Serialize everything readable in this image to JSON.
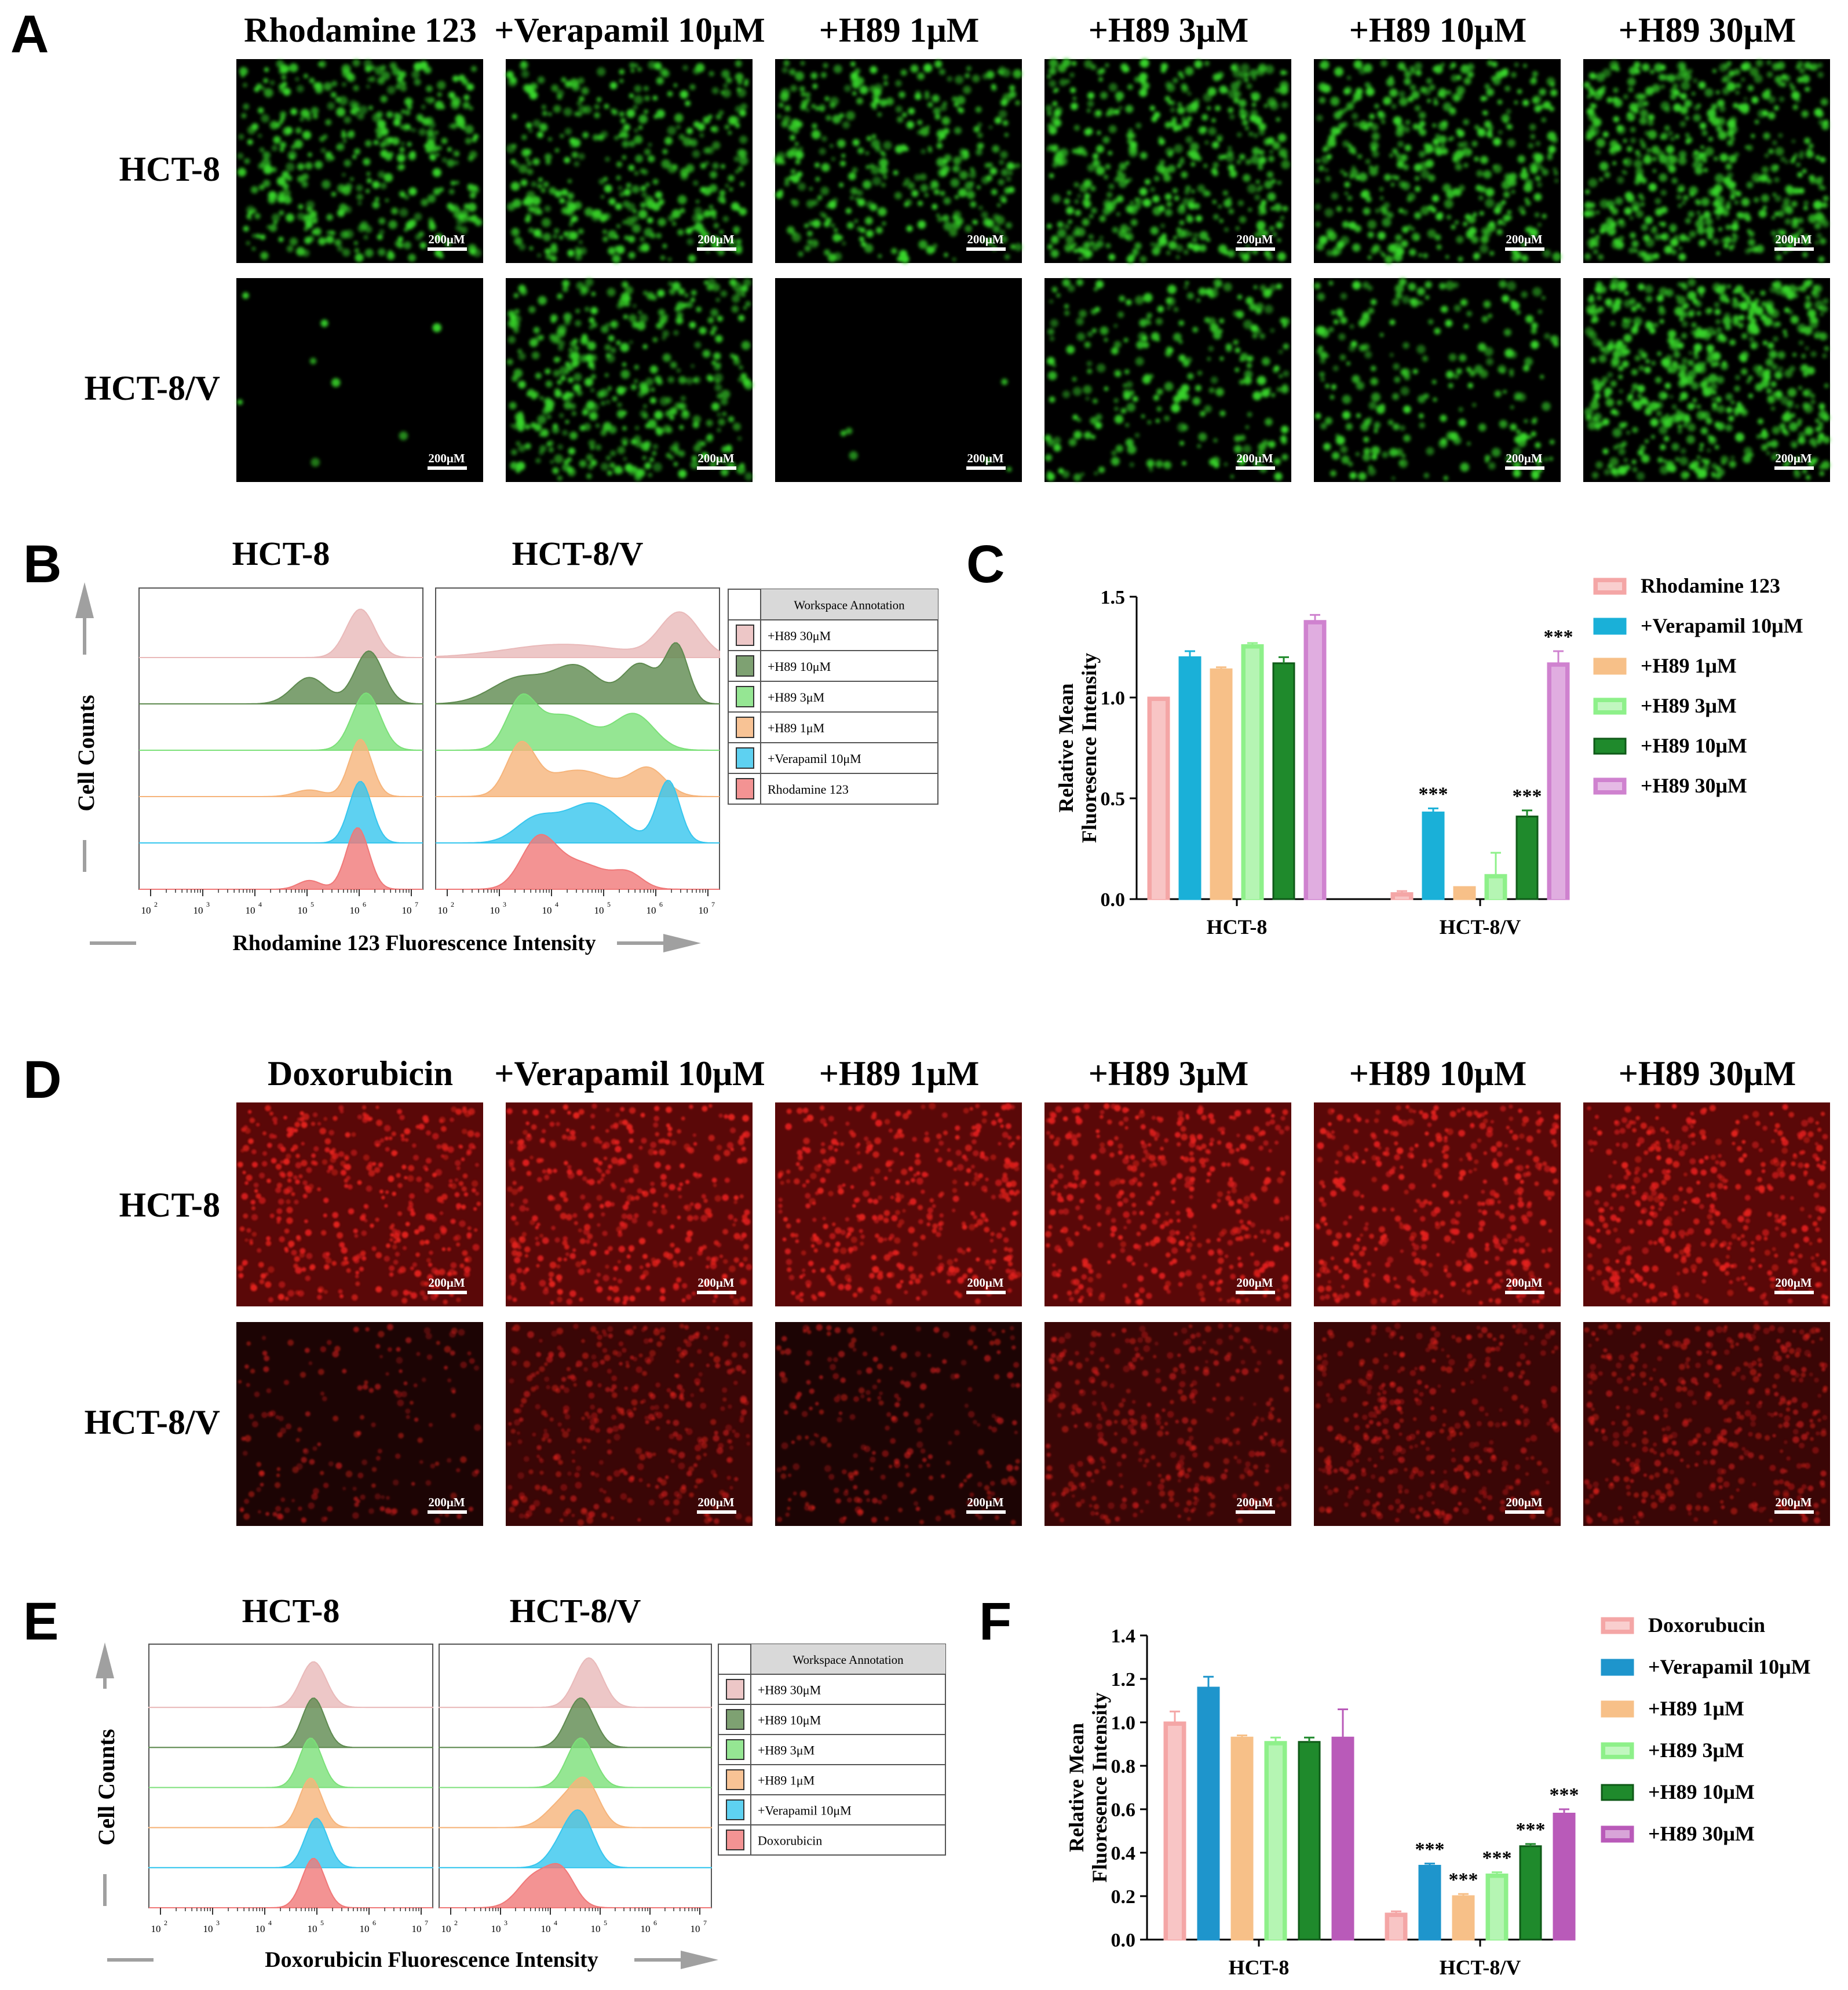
{
  "panels": {
    "A": {
      "letter": "A",
      "columns": [
        "Rhodamine 123",
        "+Verapamil 10μM",
        "+H89 1μM",
        "+H89 3μM",
        "+H89 10μM",
        "+H89 30μM"
      ],
      "rows": [
        "HCT-8",
        "HCT-8/V"
      ],
      "scale_bar": "200μM",
      "stain_color": "#38d62a"
    },
    "B": {
      "letter": "B",
      "titles": [
        "HCT-8",
        "HCT-8/V"
      ],
      "ylabel": "Cell Counts",
      "xlabel": "Rhodamine 123 Fluorescence Intensity",
      "legend_header": "Workspace Annotation",
      "legend": [
        "+H89 30μM",
        "+H89 10μM",
        "+H89 3μM",
        "+H89 1μM",
        "+Verapamil 10μM",
        "Rhodamine 123"
      ],
      "ticks": [
        "10",
        "10",
        "10",
        "10",
        "10",
        "10"
      ],
      "tick_exps": [
        "2",
        "3",
        "4",
        "5",
        "6",
        "7"
      ]
    },
    "C": {
      "letter": "C"
    },
    "D": {
      "letter": "D",
      "columns": [
        "Doxorubicin",
        "+Verapamil 10μM",
        "+H89 1μM",
        "+H89 3μM",
        "+H89 10μM",
        "+H89 30μM"
      ],
      "rows": [
        "HCT-8",
        "HCT-8/V"
      ],
      "scale_bar": "200μM",
      "stain_color": "#e0201c"
    },
    "E": {
      "letter": "E",
      "titles": [
        "HCT-8",
        "HCT-8/V"
      ],
      "ylabel": "Cell Counts",
      "xlabel": "Doxorubicin Fluorescence Intensity",
      "legend_header": "Workspace Annotation",
      "legend": [
        "+H89 30μM",
        "+H89 10μM",
        "+H89 3μM",
        "+H89 1μM",
        "+Verapamil 10μM",
        "Doxorubicin"
      ],
      "ticks": [
        "10",
        "10",
        "10",
        "10",
        "10",
        "10"
      ],
      "tick_exps": [
        "2",
        "3",
        "4",
        "5",
        "6",
        "7"
      ]
    },
    "F": {
      "letter": "F"
    }
  },
  "series_colors": [
    "#f4a6a6",
    "#1ab0d8",
    "#f7c088",
    "#8ef08a",
    "#1f8a2c",
    "#cf82cf"
  ],
  "series_colors_F": [
    "#f4a6a6",
    "#1e95cc",
    "#f7c088",
    "#8ef08a",
    "#1f8a2c",
    "#b95ab9"
  ],
  "histogram_fill_colors": [
    "#e9b9b9",
    "#5e8a4f",
    "#7be078",
    "#f6b47a",
    "#36c6ee",
    "#f07878"
  ],
  "chart_data": [
    {
      "type": "bar",
      "panel": "C",
      "categories": [
        "HCT-8",
        "HCT-8/V"
      ],
      "series": [
        {
          "name": "Rhodamine 123",
          "values": [
            1.0,
            0.03
          ],
          "errors": [
            0.0,
            0.01
          ]
        },
        {
          "name": "+Verapamil 10μM",
          "values": [
            1.2,
            0.43
          ],
          "errors": [
            0.03,
            0.02
          ]
        },
        {
          "name": "+H89 1μM",
          "values": [
            1.14,
            0.06
          ],
          "errors": [
            0.01,
            0.0
          ]
        },
        {
          "name": "+H89 3μM",
          "values": [
            1.26,
            0.12
          ],
          "errors": [
            0.01,
            0.11
          ]
        },
        {
          "name": "+H89 10μM",
          "values": [
            1.17,
            0.41
          ],
          "errors": [
            0.03,
            0.03
          ]
        },
        {
          "name": "+H89 30μM",
          "values": [
            1.38,
            1.17
          ],
          "errors": [
            0.03,
            0.06
          ]
        }
      ],
      "significance": [
        [
          "",
          ""
        ],
        [
          "",
          "***"
        ],
        [
          "",
          ""
        ],
        [
          "",
          ""
        ],
        [
          "",
          "***"
        ],
        [
          "",
          "***"
        ]
      ],
      "ylabel": "Relative Mean Fluoresence Intensity",
      "ylabel_lines": [
        "Relative Mean",
        "Fluoresence Intensity"
      ],
      "ylim": [
        0,
        1.5
      ],
      "yticks": [
        "0.0",
        "0.5",
        "1.0",
        "1.5"
      ],
      "legend": "right"
    },
    {
      "type": "bar",
      "panel": "F",
      "categories": [
        "HCT-8",
        "HCT-8/V"
      ],
      "series": [
        {
          "name": "Doxorubucin",
          "values": [
            1.0,
            0.12
          ],
          "errors": [
            0.05,
            0.01
          ]
        },
        {
          "name": "+Verapamil 10μM",
          "values": [
            1.16,
            0.34
          ],
          "errors": [
            0.05,
            0.01
          ]
        },
        {
          "name": "+H89 1μM",
          "values": [
            0.93,
            0.2
          ],
          "errors": [
            0.01,
            0.01
          ]
        },
        {
          "name": "+H89 3μM",
          "values": [
            0.91,
            0.3
          ],
          "errors": [
            0.02,
            0.01
          ]
        },
        {
          "name": "+H89 10μM",
          "values": [
            0.91,
            0.43
          ],
          "errors": [
            0.02,
            0.01
          ]
        },
        {
          "name": "+H89 30μM",
          "values": [
            0.93,
            0.58
          ],
          "errors": [
            0.13,
            0.02
          ]
        }
      ],
      "significance": [
        [
          "",
          ""
        ],
        [
          "",
          "***"
        ],
        [
          "",
          "***"
        ],
        [
          "",
          "***"
        ],
        [
          "",
          "***"
        ],
        [
          "",
          "***"
        ]
      ],
      "ylabel": "Relative Mean Fluoresence Intensity",
      "ylabel_lines": [
        "Relative Mean",
        "Fluoresence Intensity"
      ],
      "ylim": [
        0,
        1.4
      ],
      "yticks": [
        "0.0",
        "0.2",
        "0.4",
        "0.6",
        "0.8",
        "1.0",
        "1.2",
        "1.4"
      ],
      "legend": "right"
    }
  ]
}
